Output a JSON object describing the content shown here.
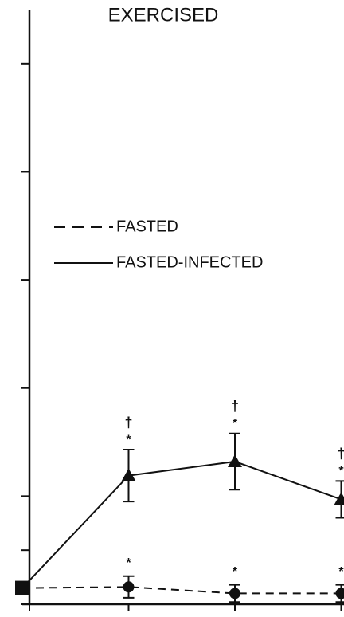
{
  "chart_data": {
    "type": "line",
    "title": "EXERCISED",
    "categories": [
      null,
      null,
      null,
      null
    ],
    "series": [
      {
        "name": "FASTED",
        "color": "#111",
        "dash": true,
        "marker": "circle",
        "values": [
          0.15,
          0.16,
          0.1,
          0.1
        ],
        "errors": [
          0,
          0.1,
          0.08,
          0.08
        ]
      },
      {
        "name": "FASTED-INFECTED",
        "color": "#111",
        "dash": false,
        "marker": "triangle",
        "values": [
          0.15,
          1.19,
          1.32,
          0.97
        ],
        "errors": [
          0,
          0.24,
          0.26,
          0.17
        ]
      }
    ],
    "annotations": [
      "†",
      "*",
      "*",
      "†",
      "*",
      "*",
      "†",
      "*",
      "*"
    ],
    "ylim": [
      0,
      5.5
    ],
    "yticks": [
      0,
      0.5,
      1,
      2,
      3,
      4,
      5
    ],
    "grid": false
  }
}
